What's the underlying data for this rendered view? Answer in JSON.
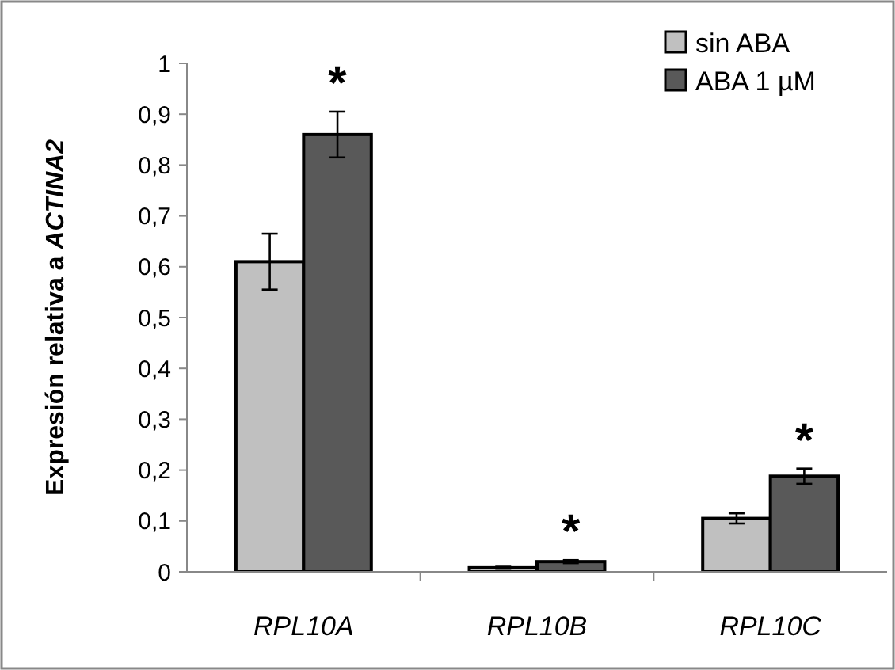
{
  "chart_data": {
    "type": "bar",
    "ylabel": "Expresión relativa a ACTINA2",
    "categories": [
      "RPL10A",
      "RPL10B",
      "RPL10C"
    ],
    "series": [
      {
        "name": "sin ABA",
        "color": "#c0c0c0",
        "values": [
          0.61,
          0.008,
          0.105
        ],
        "errors": [
          0.055,
          0.002,
          0.01
        ]
      },
      {
        "name": "ABA 1 µM",
        "color": "#595959",
        "values": [
          0.86,
          0.02,
          0.188
        ],
        "errors": [
          0.045,
          0.003,
          0.015
        ]
      }
    ],
    "ylim": [
      0,
      1
    ],
    "yticks": [
      {
        "value": 0,
        "label": "0"
      },
      {
        "value": 0.1,
        "label": "0,1"
      },
      {
        "value": 0.2,
        "label": "0,2"
      },
      {
        "value": 0.3,
        "label": "0,3"
      },
      {
        "value": 0.4,
        "label": "0,4"
      },
      {
        "value": 0.5,
        "label": "0,5"
      },
      {
        "value": 0.6,
        "label": "0,6"
      },
      {
        "value": 0.7,
        "label": "0,7"
      },
      {
        "value": 0.8,
        "label": "0,8"
      },
      {
        "value": 0.9,
        "label": "0,9"
      },
      {
        "value": 1,
        "label": "1"
      }
    ],
    "grid": false,
    "legend": "top right",
    "annotations": [
      {
        "text": "*",
        "x": "RPL10A",
        "y": 0.86
      },
      {
        "text": "*",
        "x": "RPL10B",
        "y": 0.02
      },
      {
        "text": "*",
        "x": "RPL10C",
        "y": 0.188
      }
    ]
  }
}
